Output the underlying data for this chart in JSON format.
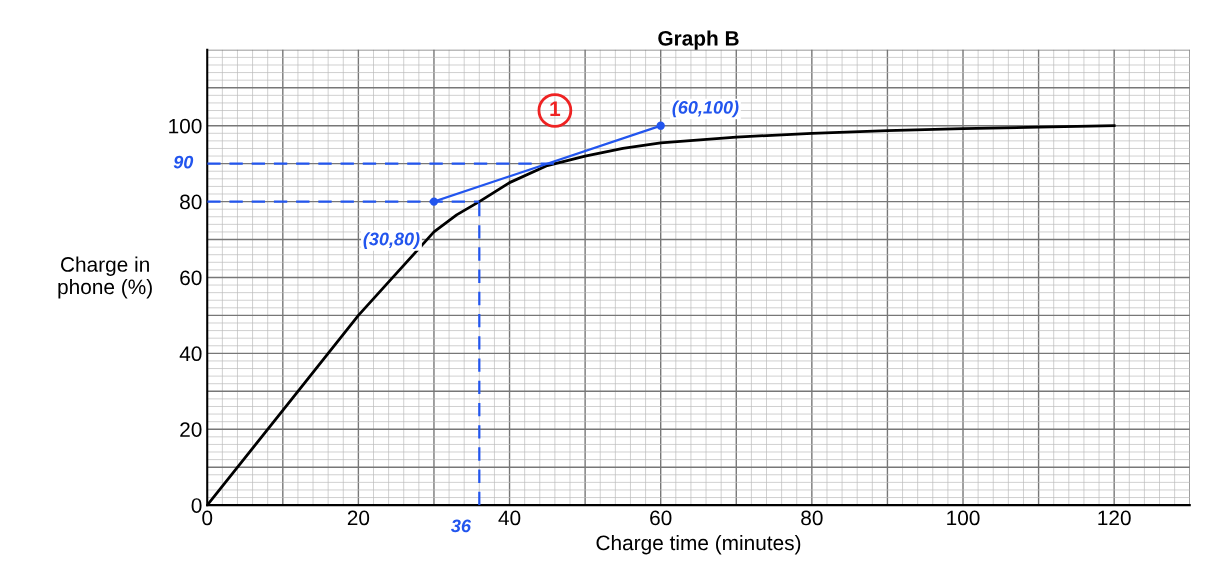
{
  "chart_data": {
    "type": "line",
    "title": "Graph B",
    "xlabel": "Charge time (minutes)",
    "ylabel": "Charge in\nphone (%)",
    "xlim": [
      0,
      130
    ],
    "ylim": [
      0,
      120
    ],
    "xticks": [
      0,
      {
        "value": 10,
        "label": null
      },
      20,
      {
        "value": 30,
        "label": null
      },
      40,
      {
        "value": 50,
        "label": null
      },
      60,
      {
        "value": 70,
        "label": null
      },
      80,
      {
        "value": 90,
        "label": null
      },
      100,
      {
        "value": 110,
        "label": null
      },
      120,
      {
        "value": 130,
        "label": null
      }
    ],
    "yticks": [
      0,
      {
        "value": 10,
        "label": null
      },
      20,
      {
        "value": 30,
        "label": null
      },
      40,
      {
        "value": 50,
        "label": null
      },
      60,
      {
        "value": 70,
        "label": null
      },
      80,
      {
        "value": 90,
        "label": null
      },
      100,
      {
        "value": 110,
        "label": null
      },
      {
        "value": 120,
        "label": null
      }
    ],
    "grid": true,
    "series": [
      {
        "color": "#000000",
        "x": [
          0,
          10,
          20,
          25,
          30,
          33,
          36,
          40,
          45,
          50,
          55,
          60,
          70,
          80,
          90,
          100,
          110,
          120
        ],
        "values": [
          0,
          25,
          50,
          61,
          72,
          76.5,
          80,
          85,
          89.5,
          92,
          94,
          95.5,
          97,
          98,
          98.7,
          99.2,
          99.6,
          100
        ]
      },
      {
        "color": "#2255ee",
        "x": [
          30,
          60
        ],
        "values": [
          80,
          100
        ],
        "marker": "circle"
      },
      {
        "color": "#2255ee",
        "x": [
          0,
          47
        ],
        "values": [
          90,
          90
        ],
        "line_style": "dashed"
      },
      {
        "color": "#2255ee",
        "x": [
          0,
          36
        ],
        "values": [
          80,
          80
        ],
        "line_style": "dashed"
      },
      {
        "color": "#2255ee",
        "x": [
          36,
          36
        ],
        "values": [
          0,
          80
        ],
        "line_style": "dashed"
      }
    ],
    "annotations": [
      {
        "text": "(30,80)",
        "x": 30,
        "y": 80
      },
      {
        "text": "(60,100)",
        "x": 60,
        "y": 100
      },
      {
        "text": "90",
        "x": 0,
        "y": 90
      },
      {
        "text": "36",
        "x": 36,
        "y": 0
      },
      {
        "text": "1",
        "x": 46,
        "y": 104
      }
    ]
  }
}
